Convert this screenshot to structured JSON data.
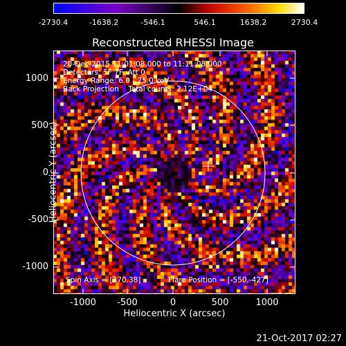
{
  "colorbar": {
    "labels": [
      "-2730.4",
      "-1638.2",
      "-546.1",
      "546.1",
      "1638.2",
      "2730.4"
    ]
  },
  "title": "Reconstructed RHESSI Image",
  "annotations": {
    "line1": "20-Dec-2015 11:01:08.000 to 11:11:08.000",
    "line2": "Detectors: 5F 7F, Att 0",
    "line3": "Energy Range: 6.0 - 25.0 keV",
    "line4": "Back Projection    Total counts: 2.12E+04",
    "spin_axis": "Spin Axis = [370.38]",
    "flare_position": "Flare Position = [-550,-427]"
  },
  "axes": {
    "xlabel": "Heliocentric X (arcsec)",
    "ylabel": "Heliocentric Y (arcsec)",
    "xticks": [
      "-1000",
      "-500",
      "0",
      "500",
      "1000"
    ],
    "yticks": [
      "1000",
      "500",
      "0",
      "-500",
      "-1000"
    ]
  },
  "footer_date": "21-Oct-2017 02:27"
}
